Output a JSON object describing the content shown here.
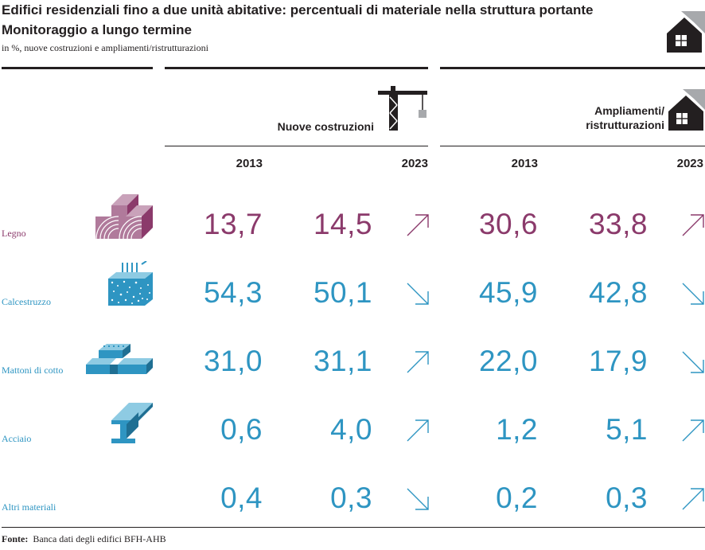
{
  "title": "Edifici residenziali fino a due unità abitative: percentuali di materiale nella struttura portante",
  "title2": "Monitoraggio a lungo termine",
  "subtitle": "in %, nuove costruzioni e ampliamenti/ristrutturazioni",
  "groups": [
    {
      "label": "Nuove costruzioni",
      "icon": "crane-icon"
    },
    {
      "label_line1": "Ampliamenti/",
      "label_line2": "ristrutturazioni",
      "icon": "house-extension-icon"
    }
  ],
  "header_icon": "house-icon",
  "years": [
    "2013",
    "2023",
    "2013",
    "2023"
  ],
  "colors": {
    "legno": "#8b3a6b",
    "blue": "#2e95c2",
    "text": "#231f20"
  },
  "footer": {
    "label": "Fonte:",
    "text": "Banca dati degli edifici BFH-AHB"
  },
  "chart_data": {
    "type": "table",
    "columns": [
      "Nuove costruzioni 2013",
      "Nuove costruzioni 2023",
      "Ampliamenti/ristrutturazioni 2013",
      "Ampliamenti/ristrutturazioni 2023"
    ],
    "rows": [
      {
        "label": "Legno",
        "icon": "wood-icon",
        "color": "#8b3a6b",
        "values": [
          "13,7",
          "14,5",
          "30,6",
          "33,8"
        ],
        "trends": [
          "up",
          "up"
        ]
      },
      {
        "label": "Calcestruzzo",
        "icon": "concrete-icon",
        "color": "#2e95c2",
        "values": [
          "54,3",
          "50,1",
          "45,9",
          "42,8"
        ],
        "trends": [
          "down",
          "down"
        ]
      },
      {
        "label": "Mattoni di cotto",
        "icon": "bricks-icon",
        "color": "#2e95c2",
        "values": [
          "31,0",
          "31,1",
          "22,0",
          "17,9"
        ],
        "trends": [
          "up",
          "down"
        ]
      },
      {
        "label": "Acciaio",
        "icon": "steel-beam-icon",
        "color": "#2e95c2",
        "values": [
          "0,6",
          "4,0",
          "1,2",
          "5,1"
        ],
        "trends": [
          "up",
          "up"
        ]
      },
      {
        "label": "Altri materiali",
        "icon": "",
        "color": "#2e95c2",
        "values": [
          "0,4",
          "0,3",
          "0,2",
          "0,3"
        ],
        "trends": [
          "down",
          "up"
        ]
      }
    ]
  }
}
